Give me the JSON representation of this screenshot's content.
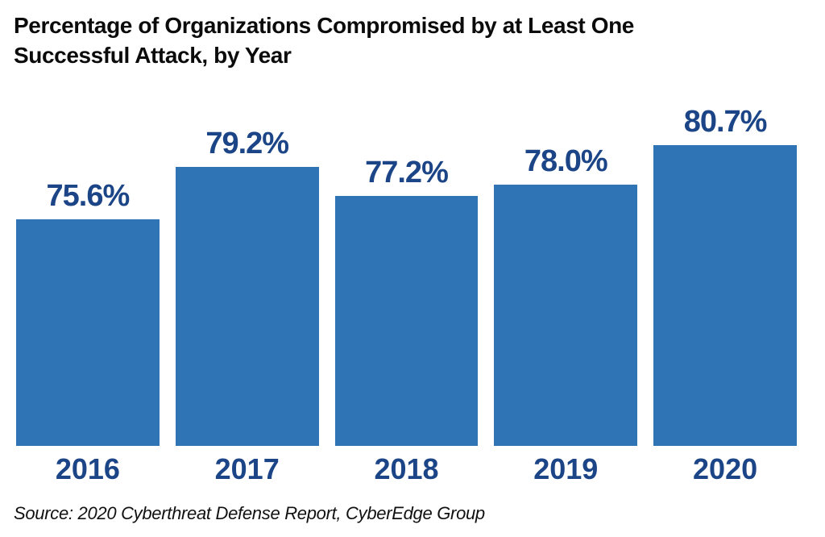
{
  "chart_data": {
    "type": "bar",
    "title": "Percentage of Organizations Compromised by at Least One Successful Attack, by Year",
    "title_lines": [
      "Percentage of Organizations Compromised by at Least One",
      "Successful Attack, by Year"
    ],
    "categories": [
      "2016",
      "2017",
      "2018",
      "2019",
      "2020"
    ],
    "values": [
      75.6,
      79.2,
      77.2,
      78.0,
      80.7
    ],
    "value_labels": [
      "75.6%",
      "79.2%",
      "77.2%",
      "78.0%",
      "80.7%"
    ],
    "xlabel": "",
    "ylabel": "",
    "ylim": [
      60,
      81
    ],
    "grid": false,
    "legend": false,
    "source": "Source: 2020 Cyberthreat Defense Report, CyberEdge Group",
    "colors": {
      "bar": "#2F75B5",
      "value_label": "#1C4587",
      "year_label": "#1C4587",
      "title": "#0B0B0B",
      "source": "#111111"
    }
  }
}
